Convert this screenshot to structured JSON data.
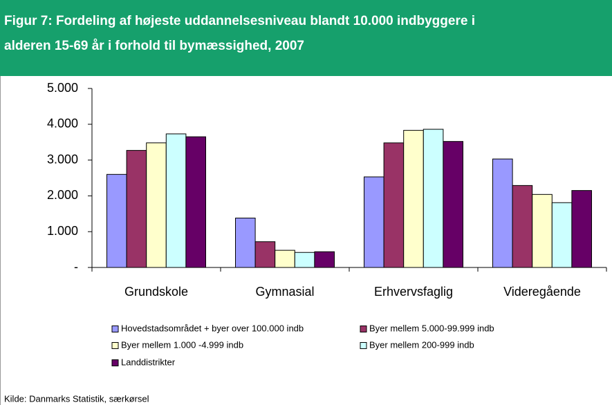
{
  "chart_data": {
    "type": "bar",
    "title": [
      "Figur 7: Fordeling af højeste uddannelsesniveau blandt 10.000 indbyggere i",
      "alderen 15-69 år i forhold til bymæssighed, 2007"
    ],
    "categories": [
      "Grundskole",
      "Gymnasial",
      "Erhvervsfaglig",
      "Videregående"
    ],
    "series": [
      {
        "name": "Hovedstadsområdet + byer over 100.000 indb",
        "color": "#9999ff",
        "values": [
          2600,
          1380,
          2530,
          3030
        ]
      },
      {
        "name": "Byer mellem 5.000-99.999 indb",
        "color": "#993366",
        "values": [
          3270,
          720,
          3480,
          2290
        ]
      },
      {
        "name": "Byer mellem 1.000 -4.999 indb",
        "color": "#ffffcc",
        "values": [
          3480,
          480,
          3830,
          2040
        ]
      },
      {
        "name": "Byer mellem 200-999 indb",
        "color": "#ccffff",
        "values": [
          3730,
          420,
          3860,
          1810
        ]
      },
      {
        "name": "Landdistrikter",
        "color": "#660066",
        "values": [
          3650,
          440,
          3520,
          2150
        ]
      }
    ],
    "ylim": [
      0,
      5000
    ],
    "yticks": [
      {
        "value": 0,
        "label": "-"
      },
      {
        "value": 1000,
        "label": "1.000"
      },
      {
        "value": 2000,
        "label": "2.000"
      },
      {
        "value": 3000,
        "label": "3.000"
      },
      {
        "value": 4000,
        "label": "4.000"
      },
      {
        "value": 5000,
        "label": "5.000"
      }
    ],
    "grid": false,
    "source": "Kilde: Danmarks Statistik, særkørsel"
  }
}
